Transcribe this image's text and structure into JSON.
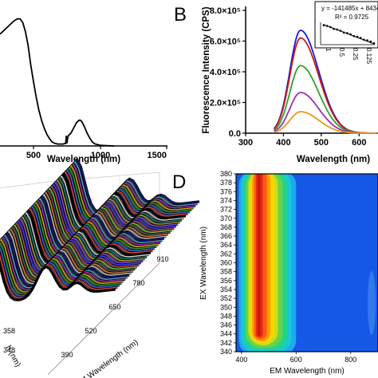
{
  "panel_letters": {
    "b": "B",
    "d": "D"
  },
  "chart_data": [
    {
      "panel": "A",
      "type": "line",
      "xlabel": "Wavelength (nm)",
      "ylabel": "",
      "xlim": [
        250,
        1500
      ],
      "xticks": [
        500,
        1000,
        1500
      ],
      "ylim": [
        0,
        1
      ],
      "series": [
        {
          "name": "",
          "color": "#000000",
          "x": [
            250,
            300,
            350,
            380,
            400,
            420,
            440,
            460,
            480,
            500,
            520,
            540,
            560,
            580,
            600,
            620,
            640,
            660,
            680,
            700,
            720,
            740,
            745,
            750,
            755,
            760,
            780,
            800,
            820,
            840,
            850,
            860,
            880,
            900,
            920,
            940,
            960,
            1000,
            1050,
            1100
          ],
          "y": [
            0.87,
            0.92,
            0.97,
            0.99,
            0.99,
            0.96,
            0.89,
            0.78,
            0.63,
            0.5,
            0.38,
            0.28,
            0.2,
            0.14,
            0.09,
            0.055,
            0.03,
            0.02,
            0.015,
            0.015,
            0.015,
            0.02,
            0.08,
            0.02,
            0.06,
            0.08,
            0.1,
            0.14,
            0.18,
            0.2,
            0.2,
            0.19,
            0.15,
            0.1,
            0.06,
            0.03,
            0.015,
            0.005,
            0.002,
            0
          ]
        }
      ]
    },
    {
      "panel": "B",
      "type": "line",
      "xlabel": "Wavelength (nm)",
      "ylabel": "Fluorescence Intensity (CPS)",
      "xlim": [
        300,
        650
      ],
      "xticks": [
        300,
        400,
        500,
        600
      ],
      "ylim": [
        0,
        800000
      ],
      "yticks": [
        0,
        200000,
        400000,
        600000,
        800000
      ],
      "ytick_labels": [
        "0.0",
        "2.0×10⁵",
        "4.0×10⁵",
        "6.0×10⁵",
        "8.0×10⁵"
      ],
      "series": [
        {
          "name": "",
          "color": "#1a1acc",
          "peak": 670000
        },
        {
          "name": "",
          "color": "#cc1a1a",
          "peak": 620000
        },
        {
          "name": "",
          "color": "#2ca02c",
          "peak": 440000
        },
        {
          "name": "",
          "color": "#9b30b4",
          "peak": 265000
        },
        {
          "name": "",
          "color": "#e8961e",
          "peak": 140000
        }
      ],
      "peak_position_nm": 445,
      "inset": {
        "equation": "y = -141485x + 843475",
        "r2": "R² = 0.9725",
        "xticks": [
          "1",
          "0.5",
          "0.25",
          "0.125",
          "0.0625"
        ]
      }
    },
    {
      "panel": "C",
      "type": "area",
      "xlabel": "EM Wavelength (nm)",
      "ylabel": "h (nm)",
      "xticks": [
        "390",
        "520",
        "650",
        "780",
        "910"
      ],
      "yticks": [
        "358",
        "348"
      ]
    },
    {
      "panel": "D",
      "type": "heatmap",
      "xlabel": "EM Wavelength (nm)",
      "ylabel": "EX Wavelength (nm)",
      "xlim": [
        380,
        900
      ],
      "xticks": [
        400,
        600,
        800
      ],
      "ylim": [
        340,
        380
      ],
      "yticks": [
        340,
        342,
        344,
        346,
        348,
        350,
        352,
        354,
        356,
        358,
        360,
        362,
        364,
        366,
        368,
        370,
        372,
        374,
        376,
        378,
        380
      ]
    }
  ]
}
